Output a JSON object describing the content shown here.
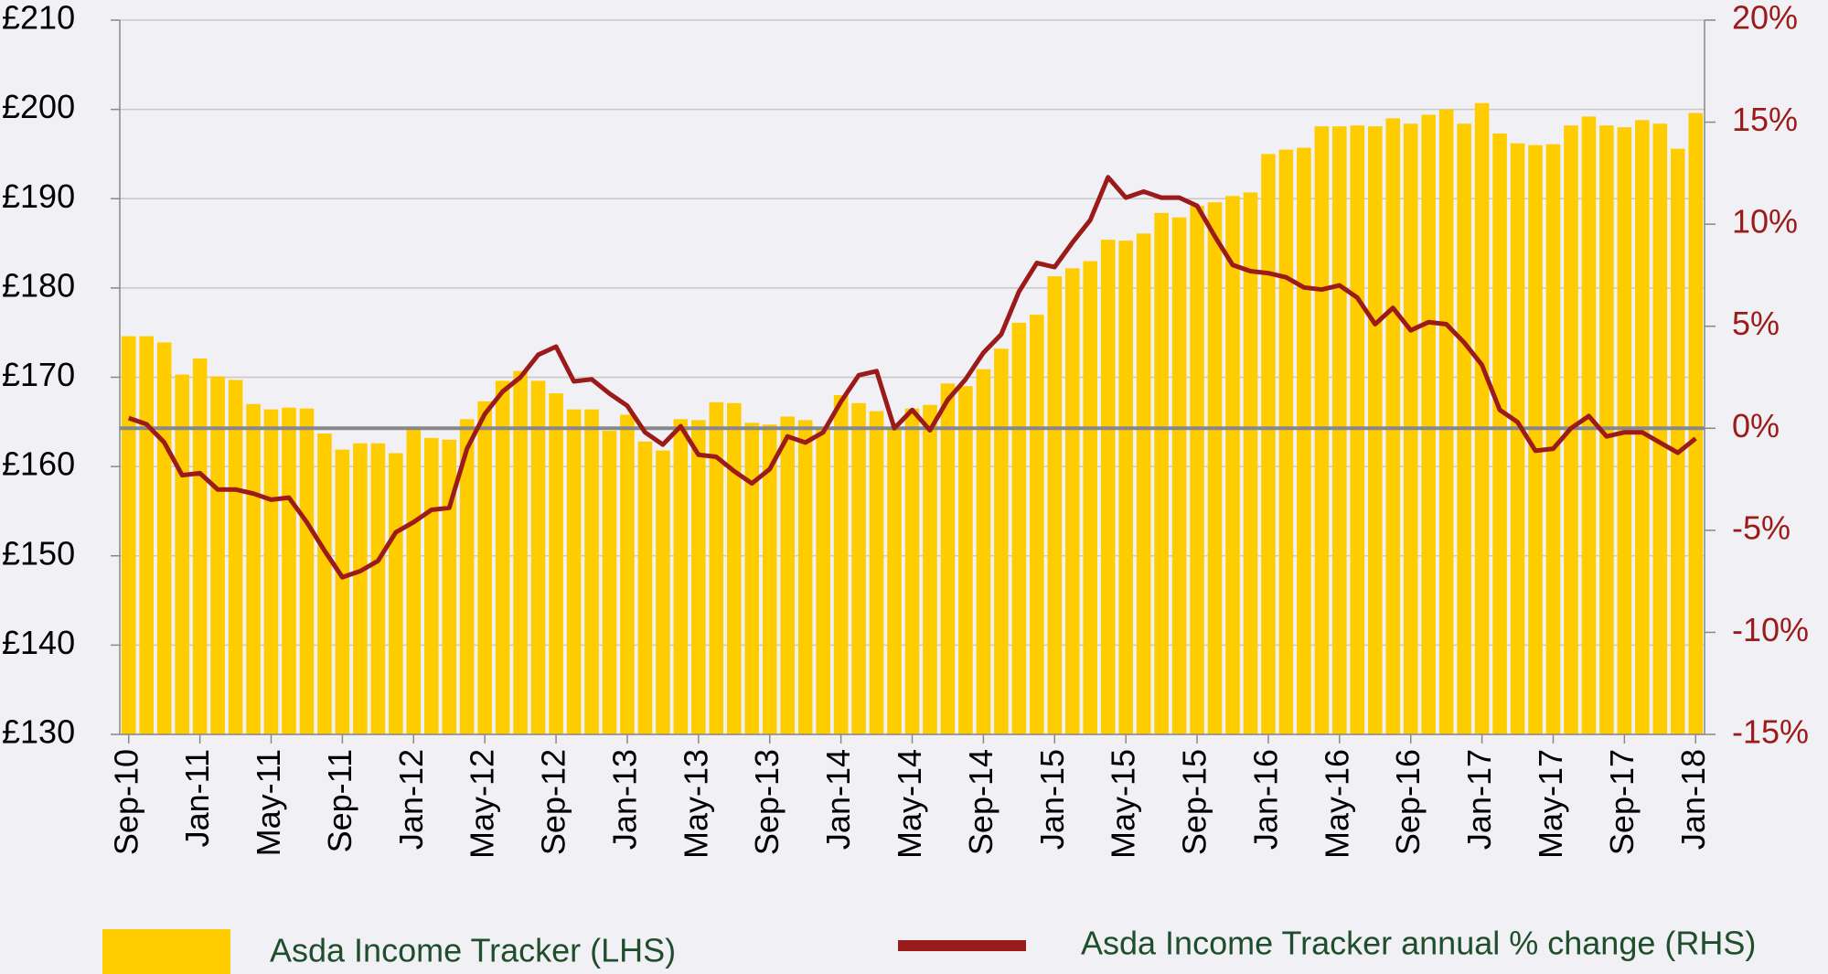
{
  "chart_data": {
    "type": "bar+line",
    "categories": [
      "Sep-10",
      null,
      null,
      null,
      "Jan-11",
      null,
      null,
      null,
      "May-11",
      null,
      null,
      null,
      "Sep-11",
      null,
      null,
      null,
      "Jan-12",
      null,
      null,
      null,
      "May-12",
      null,
      null,
      null,
      "Sep-12",
      null,
      null,
      null,
      "Jan-13",
      null,
      null,
      null,
      "May-13",
      null,
      null,
      null,
      "Sep-13",
      null,
      null,
      null,
      "Jan-14",
      null,
      null,
      null,
      "May-14",
      null,
      null,
      null,
      "Sep-14",
      null,
      null,
      null,
      "Jan-15",
      null,
      null,
      null,
      "May-15",
      null,
      null,
      null,
      "Sep-15",
      null,
      null,
      null,
      "Jan-16",
      null,
      null,
      null,
      "May-16",
      null,
      null,
      null,
      "Sep-16",
      null,
      null,
      null,
      "Jan-17",
      null,
      null,
      null,
      "May-17",
      null,
      null,
      null,
      "Sep-17",
      null,
      null,
      null,
      "Jan-18"
    ],
    "series": [
      {
        "name": "Asda Income Tracker (LHS)",
        "type": "bar",
        "color": "#ffcc00",
        "values": [
          174.6,
          174.6,
          173.9,
          170.3,
          172.1,
          170.1,
          169.7,
          167.0,
          166.4,
          166.6,
          166.5,
          163.7,
          161.9,
          162.6,
          162.6,
          161.5,
          164.1,
          163.2,
          163.0,
          165.3,
          167.3,
          169.6,
          170.7,
          169.6,
          168.2,
          166.4,
          166.4,
          164.0,
          165.8,
          162.8,
          161.8,
          165.3,
          165.2,
          167.2,
          167.1,
          164.9,
          164.7,
          165.6,
          165.2,
          164.4,
          168.0,
          167.1,
          166.2,
          164.4,
          166.5,
          166.9,
          169.3,
          169.0,
          170.9,
          173.2,
          176.1,
          177.0,
          181.3,
          182.2,
          183.0,
          185.4,
          185.3,
          186.1,
          188.4,
          187.9,
          189.2,
          189.6,
          190.3,
          190.7,
          195.0,
          195.5,
          195.7,
          198.1,
          198.1,
          198.2,
          198.1,
          199.0,
          198.4,
          199.4,
          200.0,
          198.4,
          200.7,
          197.3,
          196.2,
          196.0,
          196.1,
          198.2,
          199.2,
          198.2,
          198.0,
          198.8,
          198.4,
          195.6,
          199.6
        ]
      },
      {
        "name": "Asda Income Tracker annual % change (RHS)",
        "type": "line",
        "axis": "y2",
        "color": "#9b1b1b",
        "values": [
          0.5,
          0.2,
          -0.7,
          -2.3,
          -2.2,
          -3.0,
          -3.0,
          -3.2,
          -3.5,
          -3.4,
          -4.6,
          -6.0,
          -7.3,
          -7.0,
          -6.5,
          -5.1,
          -4.6,
          -4.0,
          -3.9,
          -1.0,
          0.7,
          1.8,
          2.5,
          3.6,
          4.0,
          2.3,
          2.4,
          1.7,
          1.1,
          -0.2,
          -0.8,
          0.1,
          -1.3,
          -1.4,
          -2.1,
          -2.7,
          -2.0,
          -0.4,
          -0.7,
          -0.2,
          1.3,
          2.6,
          2.8,
          0.0,
          0.9,
          -0.1,
          1.4,
          2.4,
          3.7,
          4.6,
          6.7,
          8.1,
          7.9,
          9.1,
          10.2,
          12.3,
          11.3,
          11.6,
          11.3,
          11.3,
          10.9,
          9.4,
          8.0,
          7.7,
          7.6,
          7.4,
          6.9,
          6.8,
          7.0,
          6.4,
          5.1,
          5.9,
          4.8,
          5.2,
          5.1,
          4.2,
          3.1,
          0.9,
          0.3,
          -1.1,
          -1.0,
          0.0,
          0.6,
          -0.4,
          -0.2,
          -0.2,
          -0.7,
          -1.2,
          -0.5
        ]
      }
    ],
    "ylim": [
      130,
      210
    ],
    "yticks": [
      {
        "value": 130,
        "label": "£130"
      },
      {
        "value": 140,
        "label": "£140"
      },
      {
        "value": 150,
        "label": "£150"
      },
      {
        "value": 160,
        "label": "£160"
      },
      {
        "value": 170,
        "label": "£170"
      },
      {
        "value": 180,
        "label": "£180"
      },
      {
        "value": 190,
        "label": "£190"
      },
      {
        "value": 200,
        "label": "£200"
      },
      {
        "value": 210,
        "label": "£210"
      }
    ],
    "y2lim": [
      -15,
      20
    ],
    "y2ticks": [
      {
        "value": -15,
        "label": "-15%"
      },
      {
        "value": -10,
        "label": "-10%"
      },
      {
        "value": -5,
        "label": "-5%"
      },
      {
        "value": 0,
        "label": "0%"
      },
      {
        "value": 5,
        "label": "5%"
      },
      {
        "value": 10,
        "label": "10%"
      },
      {
        "value": 15,
        "label": "15%"
      },
      {
        "value": 20,
        "label": "20%"
      }
    ],
    "grid": true,
    "legend": "bottom"
  }
}
